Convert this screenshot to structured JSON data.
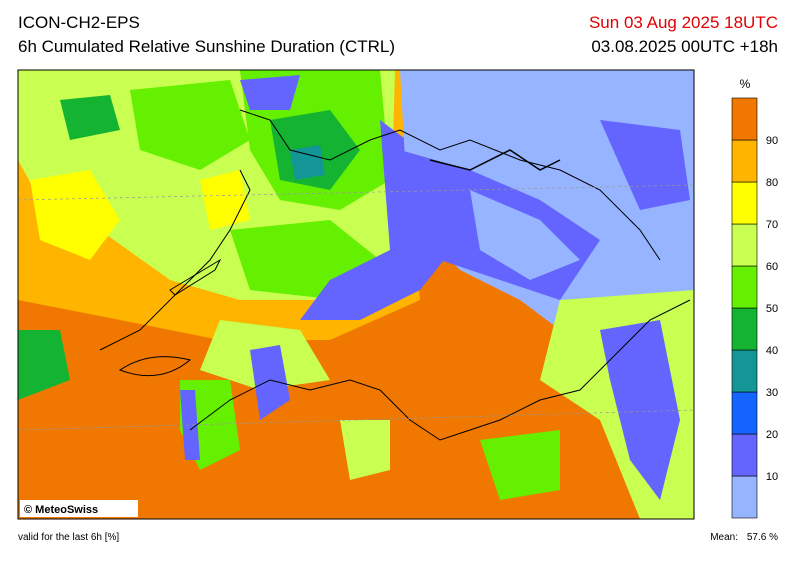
{
  "header": {
    "model": "ICON-CH2-EPS",
    "title": "6h Cumulated Relative Sunshine Duration (CTRL)",
    "valid_time": "Sun 03 Aug 2025 18UTC",
    "run": "03.08.2025 00UTC +18h"
  },
  "legend": {
    "unit": "%",
    "ticks": [
      10,
      20,
      30,
      40,
      50,
      60,
      70,
      80,
      90
    ],
    "colors": [
      "#96b4ff",
      "#6464ff",
      "#1464ff",
      "#149696",
      "#14b432",
      "#64f000",
      "#c8ff50",
      "#ffff00",
      "#ffb400",
      "#f07800"
    ]
  },
  "credit": "© MeteoSwiss",
  "footer": {
    "note": "valid for the last 6h [%]",
    "mean_label": "Mean:",
    "mean_value": "57.6 %"
  }
}
